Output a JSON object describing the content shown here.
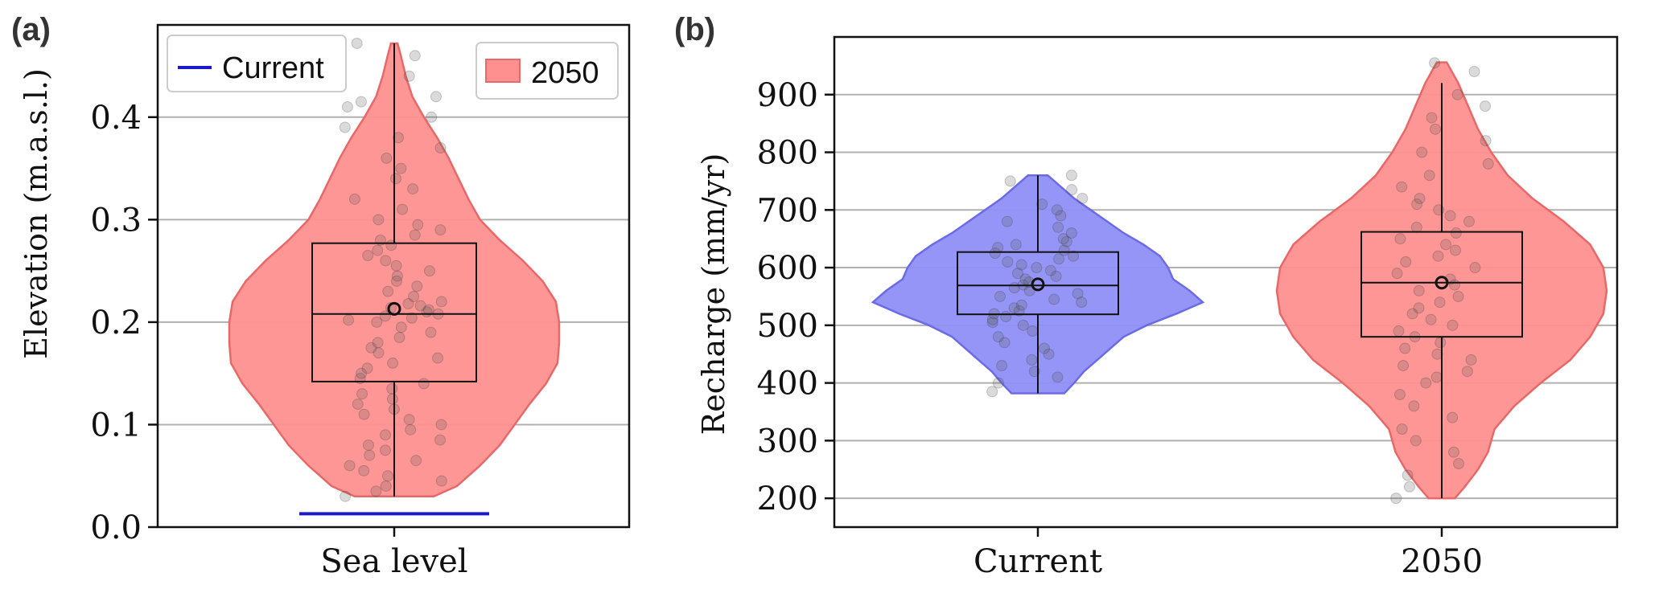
{
  "chart_data": [
    {
      "panel_label": "(a)",
      "type": "violin",
      "ylabel": "Elevation (m.a.s.l.)",
      "categories": [
        "Sea level"
      ],
      "ylim": [
        0.0,
        0.49
      ],
      "yticks": [
        0.0,
        0.1,
        0.2,
        0.3,
        0.4
      ],
      "ytick_labels": [
        "0.0",
        "0.1",
        "0.2",
        "0.3",
        "0.4"
      ],
      "grid": "horizontal",
      "legend": {
        "placement": "top",
        "entries": [
          {
            "label": "Current",
            "kind": "line",
            "color": "#1a1acc"
          },
          {
            "label": "2050",
            "kind": "patch",
            "color": "#ff7f7f"
          }
        ]
      },
      "current_line": {
        "value": 0.013,
        "color": "#1a1acc"
      },
      "violin": {
        "series": "2050",
        "color": "#ff9090",
        "edge": "#e86868",
        "profile": [
          [
            0.03,
            0.24
          ],
          [
            0.04,
            0.38
          ],
          [
            0.06,
            0.52
          ],
          [
            0.08,
            0.64
          ],
          [
            0.1,
            0.73
          ],
          [
            0.12,
            0.82
          ],
          [
            0.14,
            0.92
          ],
          [
            0.16,
            0.99
          ],
          [
            0.18,
            1.0
          ],
          [
            0.2,
            1.0
          ],
          [
            0.22,
            0.98
          ],
          [
            0.24,
            0.9
          ],
          [
            0.26,
            0.78
          ],
          [
            0.28,
            0.64
          ],
          [
            0.3,
            0.52
          ],
          [
            0.32,
            0.45
          ],
          [
            0.34,
            0.39
          ],
          [
            0.36,
            0.33
          ],
          [
            0.38,
            0.26
          ],
          [
            0.4,
            0.18
          ],
          [
            0.42,
            0.11
          ],
          [
            0.44,
            0.07
          ],
          [
            0.46,
            0.04
          ],
          [
            0.472,
            0.02
          ]
        ],
        "box": {
          "q1": 0.142,
          "median": 0.208,
          "q3": 0.277,
          "whisker_low": 0.03,
          "whisker_high": 0.472,
          "mean": 0.213
        },
        "points": [
          0.03,
          0.035,
          0.04,
          0.045,
          0.05,
          0.055,
          0.06,
          0.065,
          0.07,
          0.075,
          0.08,
          0.085,
          0.09,
          0.095,
          0.1,
          0.105,
          0.11,
          0.115,
          0.12,
          0.125,
          0.13,
          0.135,
          0.14,
          0.145,
          0.15,
          0.155,
          0.16,
          0.165,
          0.17,
          0.175,
          0.18,
          0.185,
          0.19,
          0.195,
          0.2,
          0.202,
          0.204,
          0.206,
          0.208,
          0.21,
          0.212,
          0.214,
          0.216,
          0.218,
          0.22,
          0.225,
          0.23,
          0.235,
          0.24,
          0.245,
          0.25,
          0.255,
          0.26,
          0.265,
          0.27,
          0.275,
          0.28,
          0.285,
          0.29,
          0.295,
          0.3,
          0.31,
          0.32,
          0.33,
          0.34,
          0.35,
          0.36,
          0.37,
          0.38,
          0.39,
          0.4,
          0.41,
          0.42,
          0.44,
          0.46,
          0.472,
          0.415
        ]
      }
    },
    {
      "panel_label": "(b)",
      "type": "violin",
      "ylabel": "Recharge (mm/yr)",
      "categories": [
        "Current",
        "2050"
      ],
      "ylim": [
        150,
        1000
      ],
      "yticks": [
        200,
        300,
        400,
        500,
        600,
        700,
        800,
        900
      ],
      "ytick_labels": [
        "200",
        "300",
        "400",
        "500",
        "600",
        "700",
        "800",
        "900"
      ],
      "grid": "horizontal",
      "violins": [
        {
          "series": "Current",
          "color": "#8f8ff7",
          "edge": "#6b6be8",
          "profile": [
            [
              382,
              0.16
            ],
            [
              400,
              0.22
            ],
            [
              420,
              0.28
            ],
            [
              440,
              0.36
            ],
            [
              460,
              0.44
            ],
            [
              480,
              0.52
            ],
            [
              500,
              0.66
            ],
            [
              520,
              0.84
            ],
            [
              540,
              1.0
            ],
            [
              560,
              0.92
            ],
            [
              580,
              0.82
            ],
            [
              600,
              0.79
            ],
            [
              620,
              0.74
            ],
            [
              640,
              0.64
            ],
            [
              660,
              0.52
            ],
            [
              680,
              0.42
            ],
            [
              700,
              0.32
            ],
            [
              720,
              0.22
            ],
            [
              740,
              0.14
            ],
            [
              760,
              0.06
            ]
          ],
          "box": {
            "q1": 519,
            "median": 569,
            "q3": 627,
            "whisker_low": 382,
            "whisker_high": 760,
            "mean": 571
          },
          "points": [
            385,
            400,
            410,
            420,
            430,
            440,
            450,
            460,
            470,
            480,
            490,
            500,
            505,
            510,
            515,
            520,
            525,
            530,
            535,
            540,
            545,
            550,
            555,
            560,
            565,
            570,
            575,
            580,
            585,
            590,
            595,
            600,
            605,
            610,
            615,
            620,
            625,
            630,
            635,
            640,
            645,
            650,
            660,
            670,
            680,
            690,
            700,
            710,
            720,
            735,
            750,
            760
          ]
        },
        {
          "series": "2050",
          "color": "#ff9090",
          "edge": "#e86868",
          "profile": [
            [
              200,
              0.08
            ],
            [
              220,
              0.14
            ],
            [
              250,
              0.22
            ],
            [
              280,
              0.28
            ],
            [
              320,
              0.32
            ],
            [
              360,
              0.44
            ],
            [
              400,
              0.6
            ],
            [
              440,
              0.78
            ],
            [
              480,
              0.9
            ],
            [
              520,
              0.98
            ],
            [
              560,
              1.0
            ],
            [
              600,
              0.98
            ],
            [
              640,
              0.9
            ],
            [
              680,
              0.74
            ],
            [
              720,
              0.55
            ],
            [
              760,
              0.4
            ],
            [
              800,
              0.3
            ],
            [
              840,
              0.22
            ],
            [
              880,
              0.16
            ],
            [
              920,
              0.1
            ],
            [
              956,
              0.03
            ]
          ],
          "box": {
            "q1": 480,
            "median": 574,
            "q3": 662,
            "whisker_low": 200,
            "whisker_high": 920,
            "mean": 574
          },
          "points": [
            200,
            220,
            240,
            260,
            280,
            300,
            320,
            340,
            360,
            380,
            400,
            410,
            420,
            430,
            440,
            450,
            460,
            470,
            480,
            490,
            500,
            510,
            520,
            530,
            540,
            550,
            560,
            570,
            580,
            590,
            600,
            610,
            620,
            630,
            640,
            650,
            660,
            670,
            680,
            690,
            700,
            710,
            720,
            740,
            760,
            780,
            800,
            820,
            840,
            860,
            880,
            900,
            940,
            955
          ]
        }
      ]
    }
  ]
}
